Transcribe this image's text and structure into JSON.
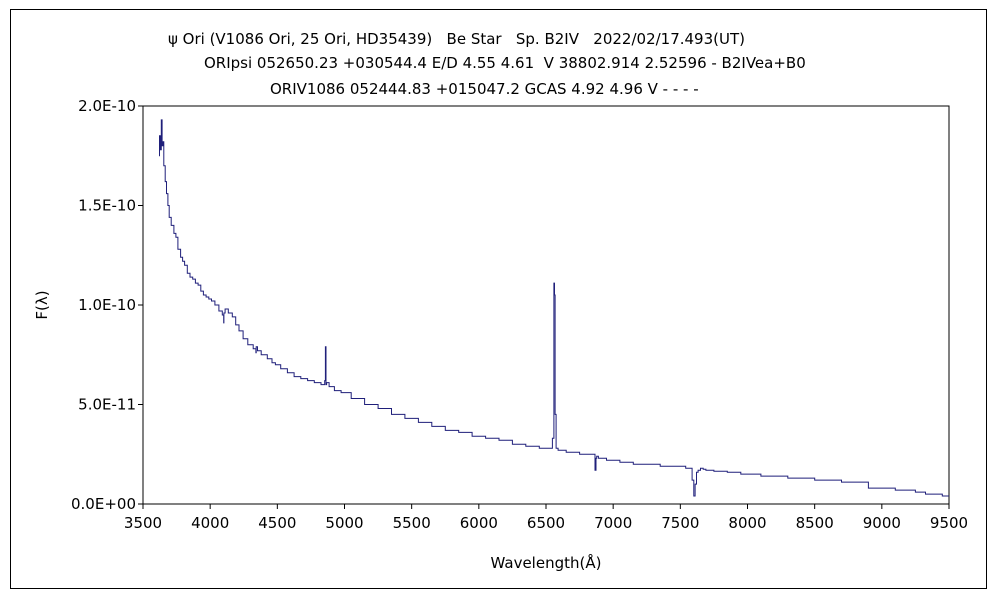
{
  "chart_data": {
    "type": "line",
    "title_lines": [
      "ψ Ori (V1086 Ori, 25 Ori, HD35439)   Be Star   Sp. B2IV   2022/02/17.493(UT)",
      "ORIpsi 052650.23 +030544.4 E/D 4.55 4.61  V 38802.914 2.52596 - B2IVea+B0",
      "ORIV1086 052444.83 +015047.2 GCAS 4.92 4.96 V - - - -"
    ],
    "xlabel": "Wavelength(Å)",
    "ylabel": "F(λ)",
    "xlim": [
      3500,
      9500
    ],
    "ylim": [
      0,
      2e-10
    ],
    "x_ticks": [
      3500,
      4000,
      4500,
      5000,
      5500,
      6000,
      6500,
      7000,
      7500,
      8000,
      8500,
      9000,
      9500
    ],
    "x_tick_labels": [
      "3500",
      "4000",
      "4500",
      "5000",
      "5500",
      "6000",
      "6500",
      "7000",
      "7500",
      "8000",
      "8500",
      "9000",
      "9500"
    ],
    "y_ticks": [
      0,
      5e-11,
      1e-10,
      1.5e-10,
      2e-10
    ],
    "y_tick_labels": [
      "0.0E+00",
      "5.0E-11",
      "1.0E-10",
      "1.5E-10",
      "2.0E-10"
    ],
    "grid": false,
    "line_color": "#1f1f7a",
    "series": [
      {
        "x": [
          3620,
          3625,
          3632,
          3640,
          3645,
          3650,
          3660,
          3670,
          3680,
          3690,
          3700,
          3720,
          3740,
          3750,
          3770,
          3790,
          3800,
          3820,
          3840,
          3860,
          3880,
          3900,
          3920,
          3940,
          3960,
          3980,
          4000,
          4020,
          4050,
          4080,
          4100,
          4101,
          4103,
          4120,
          4150,
          4180,
          4200,
          4230,
          4260,
          4300,
          4340,
          4341,
          4345,
          4360,
          4400,
          4450,
          4471,
          4500,
          4550,
          4600,
          4650,
          4700,
          4750,
          4800,
          4850,
          4855,
          4861,
          4864,
          4870,
          4900,
          4950,
          5000,
          5100,
          5200,
          5300,
          5400,
          5500,
          5600,
          5700,
          5800,
          5900,
          6000,
          6100,
          6200,
          6300,
          6400,
          6500,
          6540,
          6555,
          6562,
          6565,
          6570,
          6580,
          6600,
          6700,
          6800,
          6860,
          6870,
          6875,
          6880,
          6900,
          7000,
          7100,
          7200,
          7300,
          7400,
          7500,
          7580,
          7595,
          7605,
          7615,
          7625,
          7640,
          7660,
          7680,
          7700,
          7800,
          7900,
          8000,
          8200,
          8400,
          8600,
          8800,
          9000,
          9200,
          9300,
          9350,
          9400,
          9500
        ],
        "y": [
          1.75e-10,
          1.85e-10,
          1.78e-10,
          1.93e-10,
          1.8e-10,
          1.82e-10,
          1.7e-10,
          1.62e-10,
          1.56e-10,
          1.5e-10,
          1.44e-10,
          1.4e-10,
          1.36e-10,
          1.34e-10,
          1.28e-10,
          1.24e-10,
          1.22e-10,
          1.2e-10,
          1.16e-10,
          1.14e-10,
          1.13e-10,
          1.11e-10,
          1.1e-10,
          1.07e-10,
          1.05e-10,
          1.04e-10,
          1.03e-10,
          1.02e-10,
          1e-10,
          9.7e-11,
          9.5e-11,
          9.1e-11,
          9.6e-11,
          9.8e-11,
          9.6e-11,
          9.4e-11,
          9e-11,
          8.7e-11,
          8.3e-11,
          8e-11,
          7.8e-11,
          7.6e-11,
          7.9e-11,
          7.7e-11,
          7.5e-11,
          7.3e-11,
          7.1e-11,
          7e-11,
          6.8e-11,
          6.6e-11,
          6.4e-11,
          6.3e-11,
          6.2e-11,
          6.1e-11,
          6e-11,
          6.2e-11,
          7.9e-11,
          6e-11,
          6.1e-11,
          5.9e-11,
          5.7e-11,
          5.6e-11,
          5.3e-11,
          5e-11,
          4.8e-11,
          4.5e-11,
          4.3e-11,
          4.1e-11,
          3.9e-11,
          3.7e-11,
          3.6e-11,
          3.4e-11,
          3.3e-11,
          3.2e-11,
          3e-11,
          2.9e-11,
          2.8e-11,
          2.8e-11,
          3.3e-11,
          1.11e-10,
          1.05e-10,
          4.5e-11,
          2.8e-11,
          2.7e-11,
          2.6e-11,
          2.5e-11,
          2.5e-11,
          1.7e-11,
          2.3e-11,
          2.4e-11,
          2.3e-11,
          2.2e-11,
          2.1e-11,
          2e-11,
          2e-11,
          1.9e-11,
          1.9e-11,
          1.8e-11,
          1.2e-11,
          4e-12,
          1e-11,
          1.6e-11,
          1.7e-11,
          1.8e-11,
          1.75e-11,
          1.7e-11,
          1.65e-11,
          1.6e-11,
          1.5e-11,
          1.4e-11,
          1.3e-11,
          1.2e-11,
          1.1e-11,
          8e-12,
          7e-12,
          6e-12,
          5e-12,
          5e-12,
          4e-12
        ]
      }
    ]
  }
}
